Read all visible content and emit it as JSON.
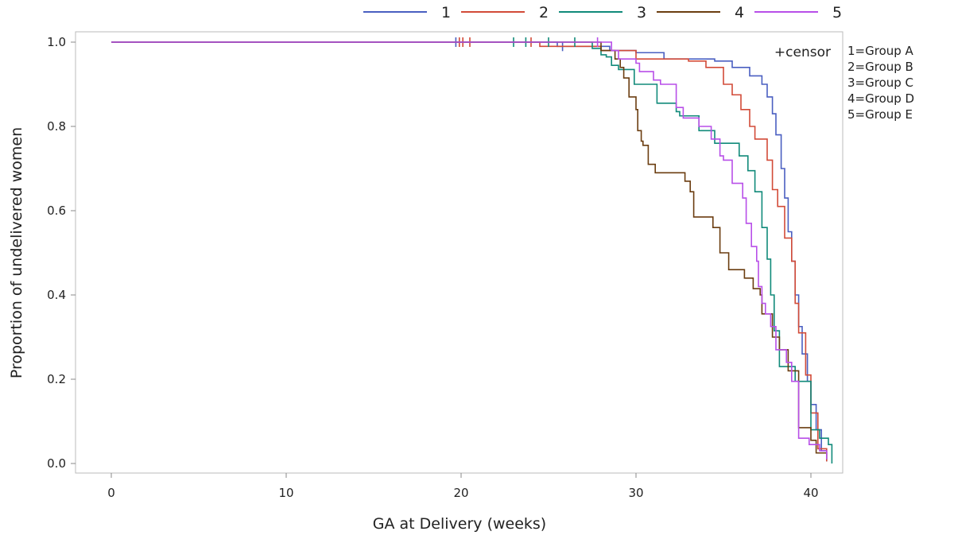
{
  "chart_data": {
    "type": "line",
    "step": true,
    "xlabel": "GA at Delivery (weeks)",
    "ylabel": "Proportion of undelivered women",
    "xlim": [
      -2,
      42
    ],
    "ylim": [
      -0.02,
      1.03
    ],
    "xticks": [
      0,
      10,
      20,
      30,
      40
    ],
    "yticks": [
      "0.0",
      "0.2",
      "0.4",
      "0.6",
      "0.8",
      "1.0"
    ],
    "grid": false,
    "legend_position": "top",
    "censor_label": "+censor",
    "group_key": [
      "1=Group A",
      "2=Group B",
      "3=Group C",
      "4=Group D",
      "5=Group E"
    ],
    "series": [
      {
        "name": "1",
        "color": "#4a5fc1",
        "points": [
          [
            0,
            1
          ],
          [
            25.5,
            0.99
          ],
          [
            28.5,
            0.98
          ],
          [
            30,
            0.975
          ],
          [
            31.6,
            0.96
          ],
          [
            34.5,
            0.955
          ],
          [
            35.5,
            0.94
          ],
          [
            36.5,
            0.92
          ],
          [
            37.2,
            0.9
          ],
          [
            37.5,
            0.87
          ],
          [
            37.8,
            0.83
          ],
          [
            38,
            0.78
          ],
          [
            38.3,
            0.7
          ],
          [
            38.5,
            0.63
          ],
          [
            38.7,
            0.55
          ],
          [
            38.9,
            0.48
          ],
          [
            39.1,
            0.4
          ],
          [
            39.3,
            0.325
          ],
          [
            39.5,
            0.26
          ],
          [
            39.8,
            0.195
          ],
          [
            40,
            0.14
          ],
          [
            40.3,
            0.08
          ],
          [
            40.6,
            0.03
          ],
          [
            40.9,
            0.005
          ]
        ],
        "censors": [
          19.7,
          25.8
        ]
      },
      {
        "name": "2",
        "color": "#d24b38",
        "points": [
          [
            0,
            1
          ],
          [
            24.5,
            0.99
          ],
          [
            28,
            0.98
          ],
          [
            30,
            0.96
          ],
          [
            33,
            0.955
          ],
          [
            34,
            0.94
          ],
          [
            35,
            0.9
          ],
          [
            35.5,
            0.875
          ],
          [
            36,
            0.84
          ],
          [
            36.5,
            0.8
          ],
          [
            36.8,
            0.77
          ],
          [
            37.5,
            0.72
          ],
          [
            37.8,
            0.65
          ],
          [
            38.1,
            0.61
          ],
          [
            38.5,
            0.535
          ],
          [
            38.9,
            0.48
          ],
          [
            39.1,
            0.38
          ],
          [
            39.3,
            0.31
          ],
          [
            39.7,
            0.21
          ],
          [
            40,
            0.12
          ],
          [
            40.4,
            0.035
          ],
          [
            40.9,
            0.005
          ]
        ],
        "censors": [
          19.9,
          20.1,
          20.5,
          24.0
        ]
      },
      {
        "name": "3",
        "color": "#118a7a",
        "points": [
          [
            0,
            1
          ],
          [
            27.5,
            0.985
          ],
          [
            28,
            0.97
          ],
          [
            28.3,
            0.965
          ],
          [
            28.6,
            0.945
          ],
          [
            29,
            0.935
          ],
          [
            29.9,
            0.9
          ],
          [
            31.2,
            0.855
          ],
          [
            32.3,
            0.835
          ],
          [
            32.5,
            0.825
          ],
          [
            33.6,
            0.79
          ],
          [
            34.5,
            0.76
          ],
          [
            35.9,
            0.73
          ],
          [
            36.4,
            0.695
          ],
          [
            36.8,
            0.645
          ],
          [
            37.2,
            0.56
          ],
          [
            37.5,
            0.485
          ],
          [
            37.7,
            0.4
          ],
          [
            37.9,
            0.315
          ],
          [
            38.2,
            0.23
          ],
          [
            39.1,
            0.195
          ],
          [
            40,
            0.08
          ],
          [
            40.5,
            0.06
          ],
          [
            41,
            0.045
          ],
          [
            41.2,
            0.0
          ]
        ],
        "censors": [
          23.0,
          23.7,
          25.0,
          26.5
        ]
      },
      {
        "name": "4",
        "color": "#6b3d10",
        "points": [
          [
            0,
            1
          ],
          [
            28,
            0.98
          ],
          [
            28.8,
            0.96
          ],
          [
            29.1,
            0.94
          ],
          [
            29.3,
            0.915
          ],
          [
            29.6,
            0.87
          ],
          [
            30,
            0.84
          ],
          [
            30.1,
            0.79
          ],
          [
            30.3,
            0.765
          ],
          [
            30.4,
            0.755
          ],
          [
            30.7,
            0.71
          ],
          [
            31.1,
            0.69
          ],
          [
            32.8,
            0.67
          ],
          [
            33.1,
            0.645
          ],
          [
            33.3,
            0.585
          ],
          [
            34.4,
            0.56
          ],
          [
            34.8,
            0.5
          ],
          [
            35.3,
            0.46
          ],
          [
            36.2,
            0.44
          ],
          [
            36.7,
            0.415
          ],
          [
            37.1,
            0.4
          ],
          [
            37.2,
            0.355
          ],
          [
            37.8,
            0.3
          ],
          [
            38.2,
            0.27
          ],
          [
            38.7,
            0.22
          ],
          [
            39.3,
            0.085
          ],
          [
            40,
            0.055
          ],
          [
            40.3,
            0.025
          ],
          [
            40.9,
            0.01
          ]
        ],
        "censors": []
      },
      {
        "name": "5",
        "color": "#b84fe8",
        "points": [
          [
            0,
            1
          ],
          [
            28.6,
            0.98
          ],
          [
            29,
            0.96
          ],
          [
            30,
            0.95
          ],
          [
            30.2,
            0.93
          ],
          [
            31,
            0.91
          ],
          [
            31.4,
            0.9
          ],
          [
            32.3,
            0.845
          ],
          [
            32.7,
            0.82
          ],
          [
            33.6,
            0.8
          ],
          [
            34.3,
            0.77
          ],
          [
            34.8,
            0.73
          ],
          [
            35,
            0.72
          ],
          [
            35.5,
            0.665
          ],
          [
            36.1,
            0.63
          ],
          [
            36.3,
            0.57
          ],
          [
            36.6,
            0.515
          ],
          [
            36.9,
            0.48
          ],
          [
            37,
            0.42
          ],
          [
            37.2,
            0.38
          ],
          [
            37.4,
            0.355
          ],
          [
            37.7,
            0.325
          ],
          [
            38,
            0.27
          ],
          [
            38.6,
            0.24
          ],
          [
            38.9,
            0.195
          ],
          [
            39.3,
            0.06
          ],
          [
            39.9,
            0.045
          ],
          [
            40.5,
            0.03
          ],
          [
            40.9,
            0.01
          ]
        ],
        "censors": [
          27.8
        ]
      }
    ]
  }
}
